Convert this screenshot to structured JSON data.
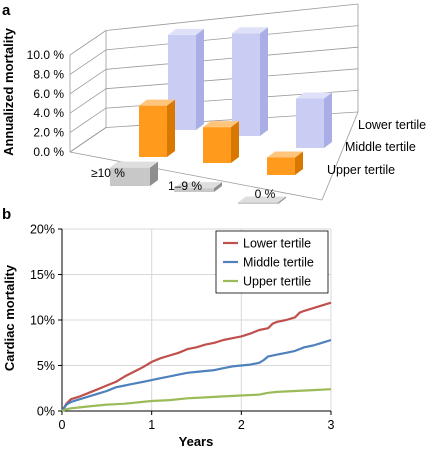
{
  "panels": [
    {
      "label": "a"
    },
    {
      "label": "b"
    }
  ],
  "colors": {
    "lower": "#c9cdf4",
    "lower_side": "#a9aee6",
    "lower_top": "#dfe1f9",
    "middle": "#ff9a1c",
    "middle_side": "#d97800",
    "middle_top": "#ffc57d",
    "upper": "#c8c8c8",
    "upper_side": "#8e8e8e",
    "upper_top": "#dedede",
    "line_lower": "#c0504d",
    "line_middle": "#4f81bd",
    "line_upper": "#9bbb59",
    "grid": "#d9d9d9",
    "axis": "#000000"
  },
  "chart_data": [
    {
      "type": "bar",
      "title": "",
      "ylabel": "Annualized mortality",
      "ylim": [
        0,
        10
      ],
      "yticks": [
        "0.0 %",
        "2.0 %",
        "4.0 %",
        "6.0 %",
        "8.0 %",
        "10.0 %"
      ],
      "categories": [
        "≥10 %",
        "1–9 %",
        "0 %"
      ],
      "series": [
        {
          "name": "Lower tertile",
          "values": [
            9.8,
            10.6,
            5.1
          ]
        },
        {
          "name": "Middle tertile",
          "values": [
            5.3,
            3.7,
            1.8
          ]
        },
        {
          "name": "Upper tertile",
          "values": [
            1.9,
            0.4,
            0.0
          ]
        }
      ],
      "grid": true
    },
    {
      "type": "line",
      "title": "",
      "xlabel": "Years",
      "ylabel": "Cardiac mortality",
      "xlim": [
        0,
        3
      ],
      "ylim": [
        0,
        20
      ],
      "xticks": [
        "0",
        "1",
        "2",
        "3"
      ],
      "yticks": [
        "0%",
        "5%",
        "10%",
        "15%",
        "20%"
      ],
      "grid": true,
      "legend_position": "top-right",
      "series": [
        {
          "name": "Lower tertile",
          "x": [
            0,
            0.05,
            0.1,
            0.2,
            0.3,
            0.4,
            0.5,
            0.6,
            0.7,
            0.8,
            0.9,
            1.0,
            1.1,
            1.2,
            1.3,
            1.4,
            1.5,
            1.6,
            1.7,
            1.8,
            1.9,
            2.0,
            2.1,
            2.2,
            2.3,
            2.35,
            2.4,
            2.5,
            2.6,
            2.65,
            2.7,
            2.8,
            2.9,
            3.0
          ],
          "y": [
            0,
            0.8,
            1.3,
            1.6,
            2.0,
            2.4,
            2.8,
            3.2,
            3.8,
            4.3,
            4.8,
            5.4,
            5.8,
            6.1,
            6.4,
            6.8,
            7.0,
            7.3,
            7.5,
            7.8,
            8.0,
            8.2,
            8.5,
            8.9,
            9.1,
            9.6,
            9.8,
            10.0,
            10.3,
            10.8,
            11.0,
            11.3,
            11.6,
            11.9
          ]
        },
        {
          "name": "Middle tertile",
          "x": [
            0,
            0.05,
            0.1,
            0.2,
            0.3,
            0.4,
            0.5,
            0.6,
            0.7,
            0.8,
            0.9,
            1.0,
            1.1,
            1.2,
            1.3,
            1.4,
            1.5,
            1.6,
            1.7,
            1.8,
            1.9,
            2.0,
            2.1,
            2.2,
            2.25,
            2.3,
            2.4,
            2.5,
            2.6,
            2.65,
            2.7,
            2.8,
            2.9,
            3.0
          ],
          "y": [
            0,
            0.7,
            1.0,
            1.3,
            1.6,
            1.9,
            2.2,
            2.6,
            2.8,
            3.0,
            3.2,
            3.4,
            3.6,
            3.8,
            4.0,
            4.2,
            4.3,
            4.4,
            4.5,
            4.7,
            4.9,
            5.0,
            5.1,
            5.3,
            5.6,
            6.0,
            6.2,
            6.4,
            6.6,
            6.8,
            7.0,
            7.2,
            7.5,
            7.8
          ]
        },
        {
          "name": "Upper tertile",
          "x": [
            0,
            0.05,
            0.1,
            0.2,
            0.3,
            0.4,
            0.5,
            0.6,
            0.7,
            0.8,
            0.9,
            1.0,
            1.2,
            1.4,
            1.6,
            1.8,
            2.0,
            2.2,
            2.3,
            2.4,
            2.6,
            2.8,
            3.0
          ],
          "y": [
            0,
            0.2,
            0.3,
            0.4,
            0.5,
            0.6,
            0.7,
            0.75,
            0.8,
            0.9,
            1.0,
            1.1,
            1.2,
            1.4,
            1.5,
            1.6,
            1.7,
            1.8,
            2.0,
            2.1,
            2.2,
            2.3,
            2.4
          ]
        }
      ]
    }
  ]
}
